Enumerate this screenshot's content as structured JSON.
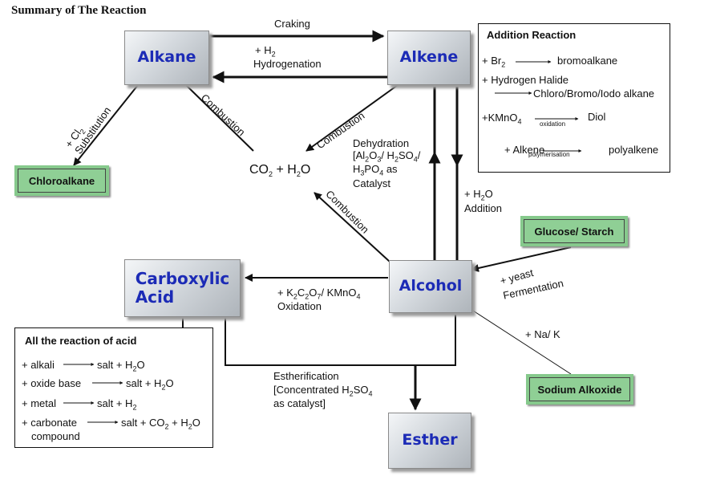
{
  "title": "Summary of The Reaction",
  "nodes": {
    "alkane": "Alkane",
    "alkene": "Alkene",
    "carboxylic_1": "Carboxylic",
    "carboxylic_2": "Acid",
    "alcohol": "Alcohol",
    "esther": "Esther",
    "chloroalkane": "Chloroalkane",
    "glucose": "Glucose/ Starch",
    "sodium_alkoxide": "Sodium Alkoxide",
    "co2_h2o": "CO2 + H2O"
  },
  "edges": {
    "craking": "Craking",
    "hydrogenation_1": "+ H2",
    "hydrogenation_2": "Hydrogenation",
    "substitution_1": "+ Cl2",
    "substitution_2": "Substitution",
    "combustion_alkane": "Combustion",
    "combustion_alkene": "Combustion",
    "combustion_alcohol": "Combustion",
    "dehydration_1": "Dehydration",
    "dehydration_2": "[Al2O3/ H2SO4/",
    "dehydration_3": "H3PO4 as",
    "dehydration_4": "Catalyst",
    "addition_1": "+ H2O",
    "addition_2": "Addition",
    "fermentation_1": "+ yeast",
    "fermentation_2": "Fermentation",
    "oxidation_1": "+ K2C2O7/ KMnO4",
    "oxidation_2": "Oxidation",
    "na_k": "+ Na/ K",
    "esterification_1": "Estherification",
    "esterification_2": "[Concentrated H2SO4",
    "esterification_3": "as catalyst]"
  },
  "addition_box": {
    "heading": "Addition Reaction",
    "br2": "+ Br2",
    "bromoalkane": "bromoalkane",
    "hydrogen_halide": "+ Hydrogen Halide",
    "chloro": "Chloro/Bromo/Iodo alkane",
    "kmno4": "+KMnO4",
    "oxidation": "oxidation",
    "diol": "Diol",
    "alkene": "+ Alkene",
    "polymerisation": "polymerisation",
    "polyalkene": "polyalkene"
  },
  "acid_box": {
    "heading": "All the reaction of acid",
    "r1_left": "+ alkali",
    "r1_right": "salt + H2O",
    "r2_left": "+ oxide base",
    "r2_right": "salt + H2O",
    "r3_left": "+ metal",
    "r3_right": "salt + H2",
    "r4_left": "+ carbonate",
    "r4_left2": "compound",
    "r4_right": "salt + CO2 + H2O"
  }
}
